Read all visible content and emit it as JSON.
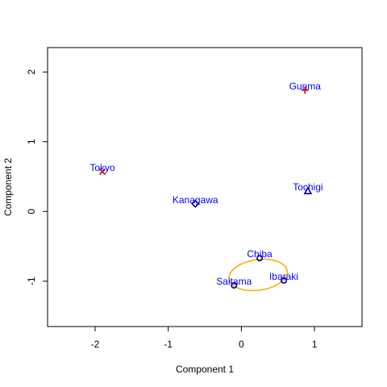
{
  "chart_data": {
    "type": "scatter",
    "title": "",
    "xlabel": "Component 1",
    "ylabel": "Component 2",
    "xlim": [
      -2.65,
      1.65
    ],
    "ylim": [
      -1.65,
      2.35
    ],
    "xticks": [
      -2,
      -1,
      0,
      1
    ],
    "yticks": [
      -1,
      0,
      1,
      2
    ],
    "grid": false,
    "colors": {
      "label": "#0000ff",
      "marker_outline": "#00008b",
      "cross": "#c00000",
      "ellipse": "#ffa500"
    },
    "points": [
      {
        "label": "Tokyo",
        "x": -1.9,
        "y": 0.57,
        "marker": "cross"
      },
      {
        "label": "Kanagawa",
        "x": -0.63,
        "y": 0.11,
        "marker": "diamond"
      },
      {
        "label": "Gunma",
        "x": 0.87,
        "y": 1.74,
        "marker": "plus"
      },
      {
        "label": "Tochigi",
        "x": 0.91,
        "y": 0.29,
        "marker": "triangle"
      },
      {
        "label": "Chiba",
        "x": 0.25,
        "y": -0.67,
        "marker": "circle"
      },
      {
        "label": "Ibaraki",
        "x": 0.58,
        "y": -0.99,
        "marker": "circle"
      },
      {
        "label": "Saitama",
        "x": -0.1,
        "y": -1.06,
        "marker": "circle"
      }
    ],
    "ellipses": [
      {
        "cx": 0.23,
        "cy": -0.91,
        "rx": 0.4,
        "ry": 0.22,
        "rotate": -8
      }
    ]
  }
}
